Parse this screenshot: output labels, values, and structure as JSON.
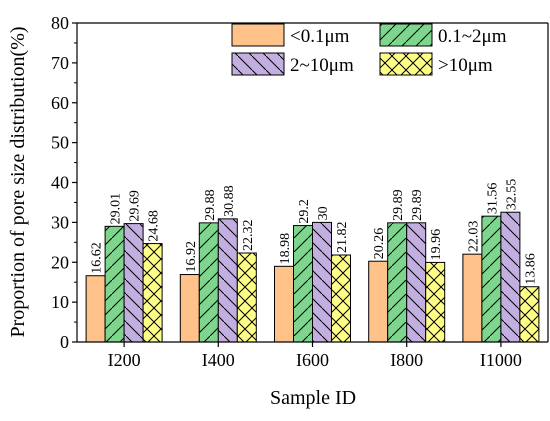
{
  "chart_data": {
    "type": "bar",
    "xlabel": "Sample ID",
    "ylabel": "Proportion of pore size distribution(%)",
    "ylim": [
      0,
      80
    ],
    "yticks": [
      0,
      10,
      20,
      30,
      40,
      50,
      60,
      70,
      80
    ],
    "categories": [
      "I200",
      "I400",
      "I600",
      "I800",
      "I1000"
    ],
    "series": [
      {
        "name": "<0.1μm",
        "values": [
          16.62,
          16.92,
          18.98,
          20.26,
          22.03
        ],
        "color": "#FFC28A",
        "pattern": "none"
      },
      {
        "name": "0.1~2μm",
        "values": [
          29.01,
          29.88,
          29.2,
          29.89,
          31.56
        ],
        "color": "#7ED68E",
        "pattern": "forward-hatch"
      },
      {
        "name": "2~10μm",
        "values": [
          29.69,
          30.88,
          30,
          29.89,
          32.55
        ],
        "color": "#C2AEE0",
        "pattern": "back-hatch"
      },
      {
        "name": ">10μm",
        "values": [
          24.68,
          22.32,
          21.82,
          19.96,
          13.86
        ],
        "color": "#FFFF88",
        "pattern": "cross-hatch"
      }
    ],
    "data_labels": [
      [
        "16.62",
        "16.92",
        "18.98",
        "20.26",
        "22.03"
      ],
      [
        "29.01",
        "29.88",
        "29.2",
        "29.89",
        "31.56"
      ],
      [
        "29.69",
        "30.88",
        "30",
        "29.89",
        "32.55"
      ],
      [
        "24.68",
        "22.32",
        "21.82",
        "19.96",
        "13.86"
      ]
    ],
    "legend_position": "top-right",
    "grid": false
  }
}
